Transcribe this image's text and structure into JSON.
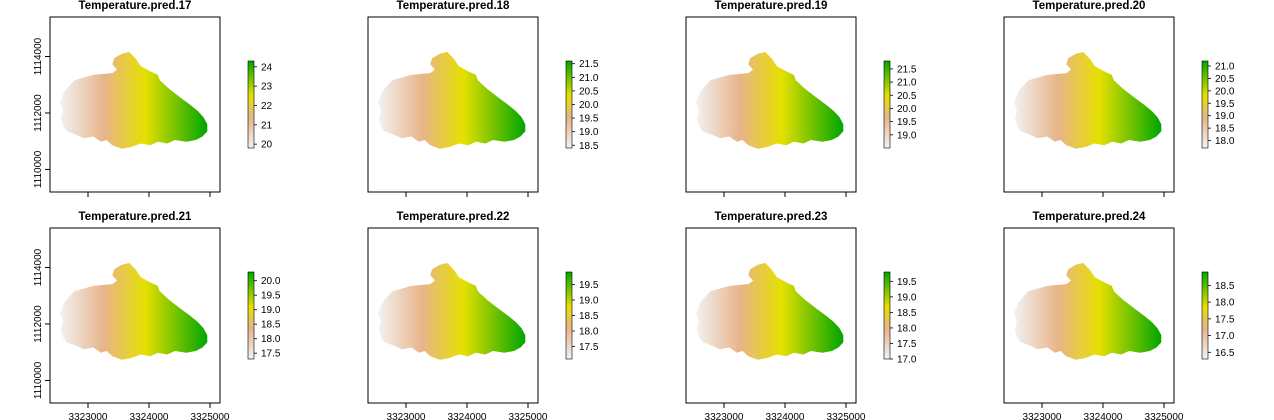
{
  "colors": {
    "low": "#f2f2f2",
    "mid_low": "#e8b48a",
    "mid": "#e6e000",
    "high": "#00a600",
    "frame": "#000000"
  },
  "chart_data": [
    {
      "type": "heatmap",
      "title": "Temperature.pred.17",
      "xlabel": "",
      "ylabel": "",
      "y_ticks": [
        1110000,
        1112000,
        1114000
      ],
      "y_tick_labels": [
        "1110000",
        "1112000",
        "1114000"
      ],
      "x_tick_labels": [
        "3323000",
        "3324000",
        "3325000"
      ],
      "legend_ticks": [
        20,
        21,
        22,
        23,
        24
      ],
      "legend_range": [
        19.8,
        24.3
      ],
      "values_range": [
        19.8,
        24.3
      ]
    },
    {
      "type": "heatmap",
      "title": "Temperature.pred.18",
      "xlabel": "",
      "ylabel": "",
      "y_ticks": [],
      "y_tick_labels": [],
      "x_tick_labels": [
        "3323000",
        "3324000",
        "3325000"
      ],
      "legend_ticks": [
        18.5,
        19.0,
        19.5,
        20.0,
        20.5,
        21.0,
        21.5
      ],
      "legend_tick_labels": [
        "18.5",
        "19.0",
        "19.5",
        "20.0",
        "20.5",
        "21.0",
        "21.5"
      ],
      "legend_range": [
        18.4,
        21.6
      ],
      "values_range": [
        18.4,
        21.6
      ]
    },
    {
      "type": "heatmap",
      "title": "Temperature.pred.19",
      "xlabel": "",
      "ylabel": "",
      "y_ticks": [],
      "y_tick_labels": [],
      "x_tick_labels": [
        "3323000",
        "3324000",
        "3325000"
      ],
      "legend_ticks": [
        19.0,
        19.5,
        20.0,
        20.5,
        21.0,
        21.5
      ],
      "legend_tick_labels": [
        "19.0",
        "19.5",
        "20.0",
        "20.5",
        "21.0",
        "21.5"
      ],
      "legend_range": [
        18.5,
        21.8
      ],
      "values_range": [
        18.5,
        21.8
      ]
    },
    {
      "type": "heatmap",
      "title": "Temperature.pred.20",
      "xlabel": "",
      "ylabel": "",
      "y_ticks": [],
      "y_tick_labels": [],
      "x_tick_labels": [
        "3323000",
        "3324000",
        "3325000"
      ],
      "legend_ticks": [
        18.0,
        18.5,
        19.0,
        19.5,
        20.0,
        20.5,
        21.0
      ],
      "legend_tick_labels": [
        "18.0",
        "18.5",
        "19.0",
        "19.5",
        "20.0",
        "20.5",
        "21.0"
      ],
      "legend_range": [
        17.7,
        21.2
      ],
      "values_range": [
        17.7,
        21.2
      ]
    },
    {
      "type": "heatmap",
      "title": "Temperature.pred.21",
      "xlabel": "",
      "ylabel": "",
      "y_ticks": [
        1110000,
        1112000,
        1114000
      ],
      "y_tick_labels": [
        "1110000",
        "1112000",
        "1114000"
      ],
      "x_tick_labels": [
        "3323000",
        "3324000",
        "3325000"
      ],
      "legend_ticks": [
        17.5,
        18.0,
        18.5,
        19.0,
        19.5,
        20.0
      ],
      "legend_tick_labels": [
        "17.5",
        "18.0",
        "18.5",
        "19.0",
        "19.5",
        "20.0"
      ],
      "legend_range": [
        17.3,
        20.3
      ],
      "values_range": [
        17.3,
        20.3
      ]
    },
    {
      "type": "heatmap",
      "title": "Temperature.pred.22",
      "xlabel": "",
      "ylabel": "",
      "y_ticks": [],
      "y_tick_labels": [],
      "x_tick_labels": [
        "3323000",
        "3324000",
        "3325000"
      ],
      "legend_ticks": [
        17.5,
        18.0,
        18.5,
        19.0,
        19.5
      ],
      "legend_tick_labels": [
        "17.5",
        "18.0",
        "18.5",
        "19.0",
        "19.5"
      ],
      "legend_range": [
        17.1,
        19.9
      ],
      "values_range": [
        17.1,
        19.9
      ]
    },
    {
      "type": "heatmap",
      "title": "Temperature.pred.23",
      "xlabel": "",
      "ylabel": "",
      "y_ticks": [],
      "y_tick_labels": [],
      "x_tick_labels": [
        "3323000",
        "3324000",
        "3325000"
      ],
      "legend_ticks": [
        17.0,
        17.5,
        18.0,
        18.5,
        19.0,
        19.5
      ],
      "legend_tick_labels": [
        "17.0",
        "17.5",
        "18.0",
        "18.5",
        "19.0",
        "19.5"
      ],
      "legend_range": [
        17.0,
        19.8
      ],
      "values_range": [
        17.0,
        19.8
      ]
    },
    {
      "type": "heatmap",
      "title": "Temperature.pred.24",
      "xlabel": "",
      "ylabel": "",
      "y_ticks": [],
      "y_tick_labels": [],
      "x_tick_labels": [
        "3323000",
        "3324000",
        "3325000"
      ],
      "legend_ticks": [
        16.5,
        17.0,
        17.5,
        18.0,
        18.5
      ],
      "legend_tick_labels": [
        "16.5",
        "17.0",
        "17.5",
        "18.0",
        "18.5"
      ],
      "legend_range": [
        16.3,
        18.9
      ],
      "values_range": [
        16.3,
        18.9
      ]
    }
  ]
}
